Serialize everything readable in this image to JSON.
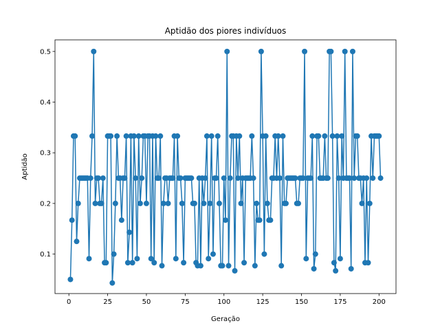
{
  "chart_data": {
    "type": "line",
    "title": "Aptidão dos piores indivíduos",
    "xlabel": "Geração",
    "ylabel": "Aptidão",
    "xlim": [
      -8.95,
      210.95
    ],
    "ylim": [
      0.0221,
      0.5229
    ],
    "x_ticks": [
      0,
      25,
      50,
      75,
      100,
      125,
      150,
      175,
      200
    ],
    "y_ticks": [
      0.1,
      0.2,
      0.3,
      0.4,
      0.5
    ],
    "y_tick_labels": [
      "0.1",
      "0.2",
      "0.3",
      "0.4",
      "0.5"
    ],
    "grid": false,
    "color": "#1f77b4",
    "x_start": 1,
    "x_end": 201,
    "series": [
      {
        "values": [
          0.05,
          0.167,
          0.333,
          0.333,
          0.125,
          0.2,
          0.25,
          0.25,
          0.25,
          0.25,
          0.25,
          0.25,
          0.091,
          0.25,
          0.333,
          0.5,
          0.2,
          0.25,
          0.25,
          0.2,
          0.2,
          0.25,
          0.083,
          0.083,
          0.333,
          0.333,
          0.333,
          0.043,
          0.1,
          0.2,
          0.333,
          0.25,
          0.25,
          0.167,
          0.25,
          0.25,
          0.333,
          0.083,
          0.143,
          0.333,
          0.083,
          0.333,
          0.25,
          0.091,
          0.333,
          0.2,
          0.25,
          0.333,
          0.333,
          0.2,
          0.333,
          0.333,
          0.091,
          0.333,
          0.083,
          0.333,
          0.25,
          0.25,
          0.333,
          0.077,
          0.2,
          0.25,
          0.25,
          0.2,
          0.25,
          0.25,
          0.25,
          0.333,
          0.091,
          0.333,
          0.25,
          0.25,
          0.2,
          0.083,
          0.25,
          0.25,
          0.25,
          0.25,
          0.25,
          0.2,
          0.2,
          0.083,
          0.077,
          0.25,
          0.077,
          0.25,
          0.2,
          0.25,
          0.333,
          0.091,
          0.2,
          0.333,
          0.1,
          0.25,
          0.25,
          0.333,
          0.2,
          0.077,
          0.077,
          0.25,
          0.167,
          0.5,
          0.077,
          0.25,
          0.333,
          0.333,
          0.067,
          0.333,
          0.25,
          0.333,
          0.2,
          0.25,
          0.083,
          0.25,
          0.25,
          0.25,
          0.25,
          0.333,
          0.25,
          0.077,
          0.2,
          0.167,
          0.167,
          0.5,
          0.333,
          0.1,
          0.333,
          0.2,
          0.167,
          0.167,
          0.25,
          0.25,
          0.333,
          0.25,
          0.333,
          0.25,
          0.077,
          0.333,
          0.2,
          0.2,
          0.25,
          0.25,
          0.25,
          0.25,
          0.25,
          0.25,
          0.2,
          0.2,
          0.25,
          0.25,
          0.25,
          0.5,
          0.091,
          0.25,
          0.25,
          0.25,
          0.333,
          0.071,
          0.1,
          0.333,
          0.333,
          0.25,
          0.25,
          0.25,
          0.333,
          0.25,
          0.25,
          0.5,
          0.5,
          0.333,
          0.083,
          0.067,
          0.333,
          0.25,
          0.091,
          0.333,
          0.25,
          0.5,
          0.25,
          0.25,
          0.25,
          0.071,
          0.5,
          0.25,
          0.333,
          0.333,
          0.25,
          0.25,
          0.2,
          0.25,
          0.083,
          0.25,
          0.083,
          0.2,
          0.333,
          0.25,
          0.333,
          0.333,
          0.333,
          0.333,
          0.25
        ]
      }
    ]
  }
}
